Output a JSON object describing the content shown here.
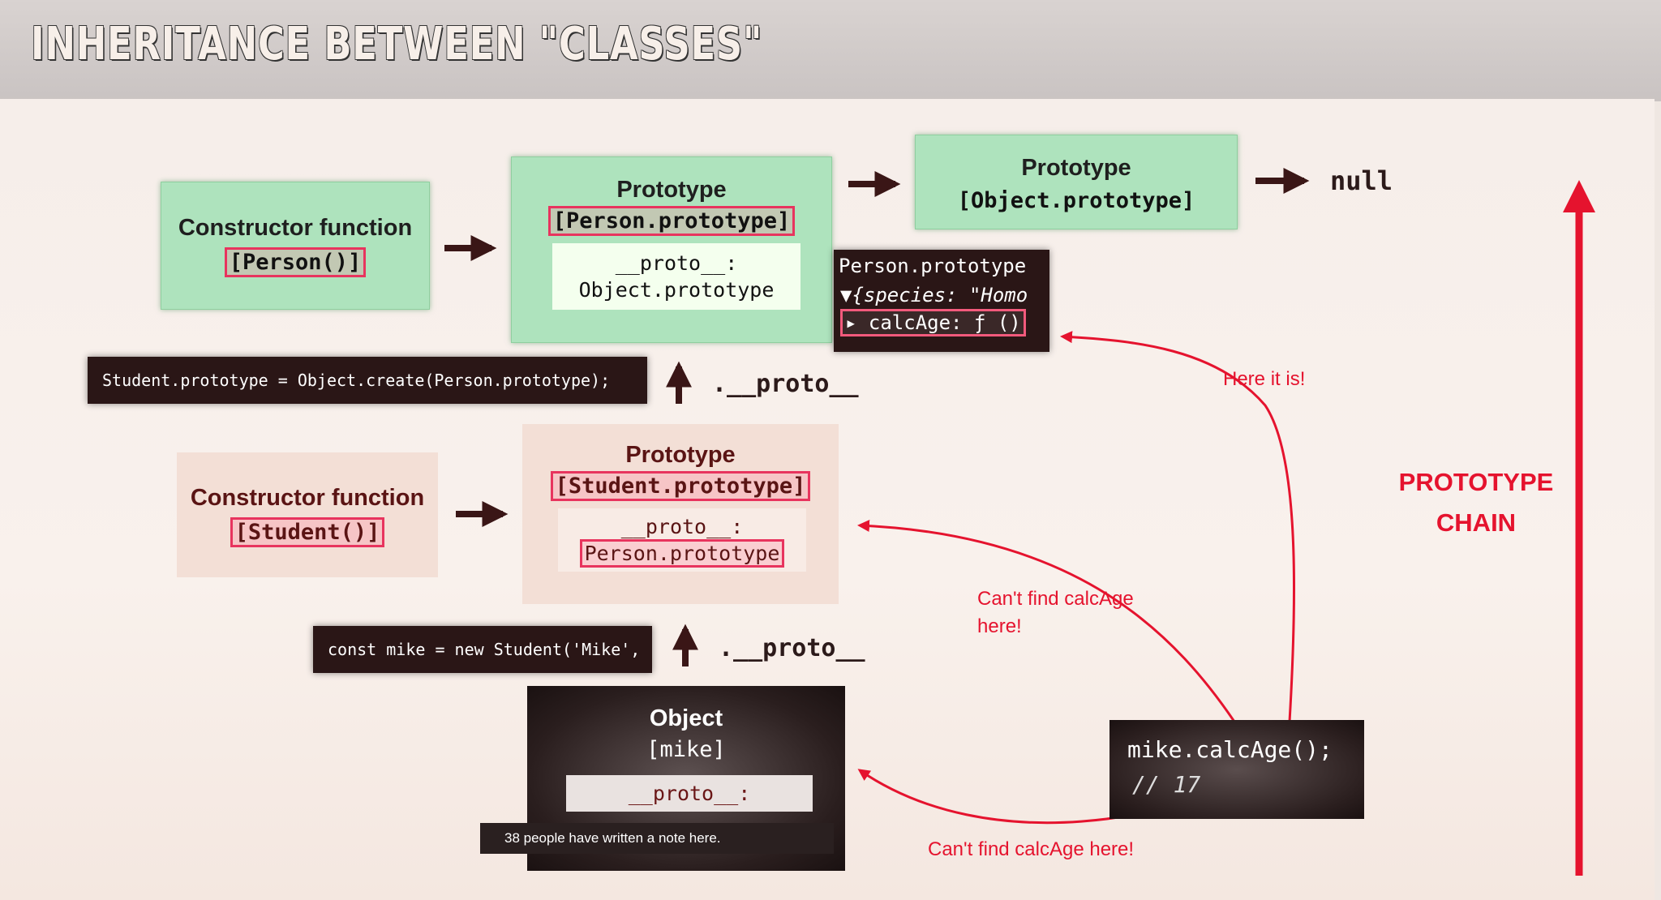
{
  "slide": {
    "title": "INHERITANCE BETWEEN \"CLASSES\"",
    "person_constructor": {
      "heading": "Constructor function",
      "name_label": "[Person()]"
    },
    "person_prototype": {
      "heading": "Prototype",
      "name_label": "[Person.prototype]",
      "proto_key": "__proto__:",
      "proto_value": "Object.prototype"
    },
    "object_prototype": {
      "heading": "Prototype",
      "name_label": "[Object.prototype]"
    },
    "null_label": "null",
    "console_panel": {
      "line1": "Person.prototype",
      "line2": "▼{species: \"Homo",
      "line3": "▸ calcAge: ƒ ()"
    },
    "student_prototype_code": "Student.prototype = Object.create(Person.prototype);",
    "proto_link_label_1": ".__proto__",
    "student_constructor": {
      "heading": "Constructor function",
      "name_label": "[Student()]"
    },
    "student_prototype": {
      "heading": "Prototype",
      "name_label": "[Student.prototype]",
      "proto_key": "__proto__:",
      "proto_value": "Person.prototype"
    },
    "mike_code": "const mike = new Student('Mike',",
    "proto_link_label_2": ".__proto__",
    "mike_object": {
      "heading": "Object",
      "name_label": "[mike]",
      "proto_key": "__proto__:"
    },
    "note_toast": "38 people have written a note here.",
    "call_code": {
      "line1": "mike.calcAge();",
      "line2": "// 17"
    },
    "annotation_found": "Here it is!",
    "annotation_not_found_1": "Can't find calcAge here!",
    "annotation_not_found_2": "Can't find calcAge here!",
    "chain_label": "PROTOTYPE CHAIN",
    "colors": {
      "accent_red": "#e5132e",
      "prototype_green": "#aee3bd",
      "highlight_pink": "#e8345e",
      "code_dark": "#2a1616"
    }
  }
}
